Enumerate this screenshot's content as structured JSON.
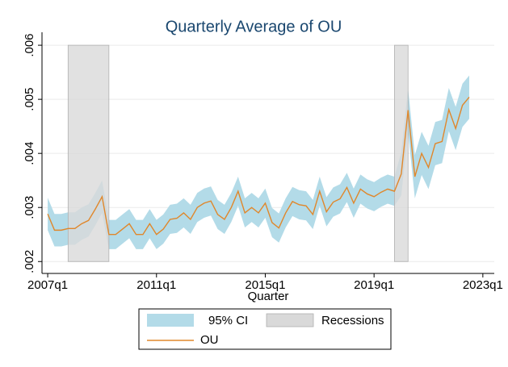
{
  "chart_data": {
    "type": "line",
    "title": "Quarterly Average of OU",
    "x_label": "Quarter",
    "x": [
      2007,
      2007.25,
      2007.5,
      2007.75,
      2008,
      2008.25,
      2008.5,
      2008.75,
      2009,
      2009.25,
      2009.5,
      2009.75,
      2010,
      2010.25,
      2010.5,
      2010.75,
      2011,
      2011.25,
      2011.5,
      2011.75,
      2012,
      2012.25,
      2012.5,
      2012.75,
      2013,
      2013.25,
      2013.5,
      2013.75,
      2014,
      2014.25,
      2014.5,
      2014.75,
      2015,
      2015.25,
      2015.5,
      2015.75,
      2016,
      2016.25,
      2016.5,
      2016.75,
      2017,
      2017.25,
      2017.5,
      2017.75,
      2018,
      2018.25,
      2018.5,
      2018.75,
      2019,
      2019.25,
      2019.5,
      2019.75,
      2020,
      2020.25,
      2020.5,
      2020.75,
      2021,
      2021.25,
      2021.5,
      2021.75,
      2022,
      2022.25,
      2022.5
    ],
    "series": [
      {
        "name": "OU",
        "color": "#e0872b",
        "values": [
          0.00288,
          0.00258,
          0.00258,
          0.00261,
          0.00261,
          0.0027,
          0.00276,
          0.00297,
          0.0032,
          0.0025,
          0.0025,
          0.0026,
          0.0027,
          0.0025,
          0.0025,
          0.0027,
          0.0025,
          0.0026,
          0.00278,
          0.0028,
          0.0029,
          0.00278,
          0.003,
          0.00308,
          0.00312,
          0.00287,
          0.00278,
          0.003,
          0.0033,
          0.0029,
          0.003,
          0.0029,
          0.00308,
          0.00272,
          0.00262,
          0.0029,
          0.00311,
          0.00305,
          0.00303,
          0.00287,
          0.0033,
          0.00292,
          0.0031,
          0.00316,
          0.00337,
          0.00308,
          0.00334,
          0.00325,
          0.0032,
          0.00328,
          0.00334,
          0.0033,
          0.00362,
          0.0048,
          0.00357,
          0.004,
          0.00374,
          0.00418,
          0.00422,
          0.00481,
          0.00446,
          0.00489,
          0.00504
        ]
      }
    ],
    "band": {
      "name": "95% CI",
      "color": "#b3dbe8",
      "lower": [
        0.00258,
        0.00228,
        0.00228,
        0.00231,
        0.00231,
        0.0024,
        0.00246,
        0.00267,
        0.0029,
        0.00223,
        0.00223,
        0.00233,
        0.00243,
        0.00223,
        0.00223,
        0.00243,
        0.00223,
        0.00233,
        0.00251,
        0.00253,
        0.00263,
        0.00251,
        0.00273,
        0.00281,
        0.00285,
        0.0026,
        0.00251,
        0.00273,
        0.00303,
        0.00263,
        0.00273,
        0.00263,
        0.00281,
        0.00245,
        0.00235,
        0.00263,
        0.00284,
        0.00278,
        0.00276,
        0.0026,
        0.00303,
        0.00265,
        0.00283,
        0.00289,
        0.0031,
        0.00281,
        0.00307,
        0.00298,
        0.00293,
        0.00301,
        0.00307,
        0.00303,
        0.00322,
        0.0044,
        0.00317,
        0.0036,
        0.00334,
        0.00378,
        0.00382,
        0.00441,
        0.00406,
        0.00449,
        0.00464
      ],
      "upper": [
        0.00318,
        0.00288,
        0.00288,
        0.00291,
        0.00291,
        0.003,
        0.00306,
        0.00327,
        0.0035,
        0.00277,
        0.00277,
        0.00287,
        0.00297,
        0.00277,
        0.00277,
        0.00297,
        0.00277,
        0.00287,
        0.00305,
        0.00307,
        0.00317,
        0.00305,
        0.00327,
        0.00335,
        0.00339,
        0.00314,
        0.00305,
        0.00327,
        0.00357,
        0.00317,
        0.00327,
        0.00317,
        0.00335,
        0.00299,
        0.00289,
        0.00317,
        0.00338,
        0.00332,
        0.0033,
        0.00314,
        0.00357,
        0.00319,
        0.00337,
        0.00343,
        0.00364,
        0.00335,
        0.00361,
        0.00352,
        0.00347,
        0.00355,
        0.00361,
        0.00357,
        0.00402,
        0.0052,
        0.00397,
        0.0044,
        0.00414,
        0.00458,
        0.00462,
        0.00521,
        0.00486,
        0.00529,
        0.00544
      ]
    },
    "recessions": {
      "name": "Recessions",
      "color": "#d9d9d9",
      "spans": [
        [
          2007.75,
          2009.25
        ],
        [
          2019.75,
          2020.25
        ]
      ]
    },
    "xlim": [
      2006.79,
      2023.42
    ],
    "xticks": [
      {
        "value": 2007,
        "label": "2007q1"
      },
      {
        "value": 2011,
        "label": "2011q1"
      },
      {
        "value": 2015,
        "label": "2015q1"
      },
      {
        "value": 2019,
        "label": "2019q1"
      },
      {
        "value": 2023,
        "label": "2023q1"
      }
    ],
    "ylim": [
      0.00178,
      0.00624
    ],
    "yticks": [
      {
        "value": 0.002,
        "label": ".002"
      },
      {
        "value": 0.003,
        "label": ".003"
      },
      {
        "value": 0.004,
        "label": ".004"
      },
      {
        "value": 0.005,
        "label": ".005"
      },
      {
        "value": 0.006,
        "label": ".006"
      }
    ],
    "grid": true,
    "legend": "bottom"
  }
}
